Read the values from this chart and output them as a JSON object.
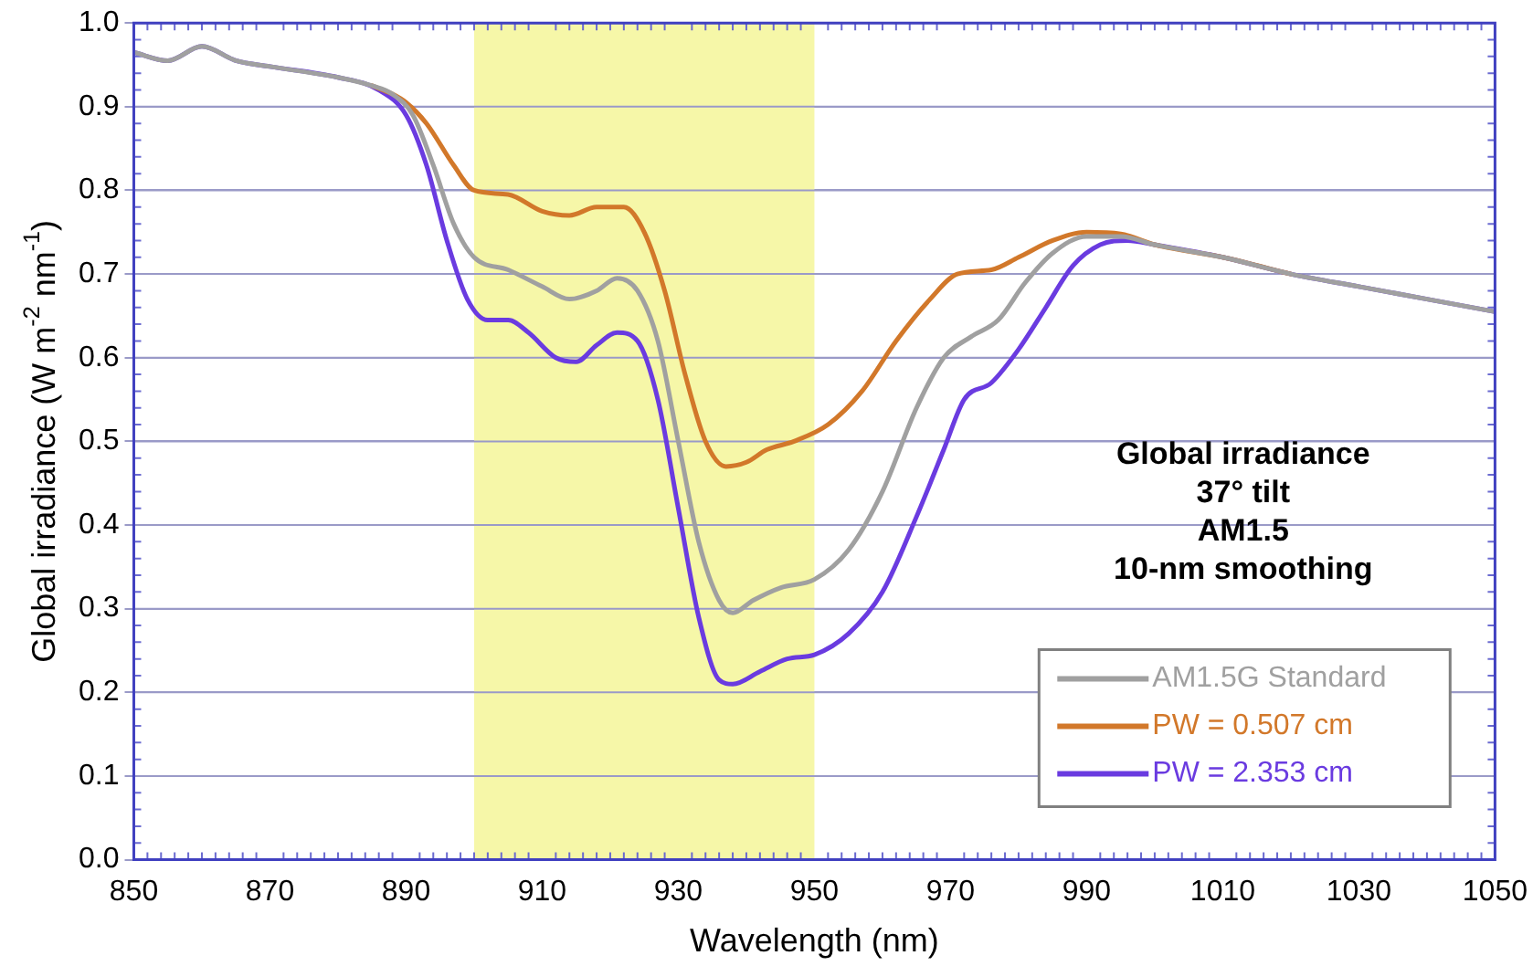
{
  "chart_data": {
    "type": "line",
    "xlabel": "Wavelength (nm)",
    "ylabel": "Global irradiance (W m$^{-2}$ nm$^{-1}$)",
    "xlim": [
      850,
      1050
    ],
    "xticks": [
      850,
      870,
      890,
      910,
      930,
      950,
      970,
      990,
      1010,
      1030,
      1050
    ],
    "ylim": [
      0,
      1
    ],
    "yticks": [
      {
        "value": 0,
        "label": "0.0"
      },
      {
        "value": 0.1,
        "label": "0.1"
      },
      {
        "value": 0.2,
        "label": "0.2"
      },
      {
        "value": 0.3,
        "label": "0.3"
      },
      {
        "value": 0.4,
        "label": "0.4"
      },
      {
        "value": 0.5,
        "label": "0.5"
      },
      {
        "value": 0.6,
        "label": "0.6"
      },
      {
        "value": 0.7,
        "label": "0.7"
      },
      {
        "value": 0.8,
        "label": "0.8"
      },
      {
        "value": 0.9,
        "label": "0.9"
      },
      {
        "value": 1,
        "label": "1.0"
      }
    ],
    "grid": "y",
    "legend": "bottom right",
    "marker": "none",
    "line_style": "solid",
    "bands": [
      {
        "axis": "x",
        "from": 900,
        "to": 950,
        "color": "#f6f7a8"
      }
    ],
    "annotations": [
      "Global irradiance",
      "37° tilt",
      "AM1.5",
      "10-nm smoothing"
    ],
    "series": [
      {
        "name": "AM1.5G Standard",
        "color": "#a0a0a0",
        "x": [
          850,
          855,
          860,
          865,
          870,
          880,
          885,
          888,
          891,
          894,
          897,
          900,
          905,
          910,
          914,
          918,
          921,
          924,
          927,
          930,
          933,
          936,
          938,
          941,
          945,
          950,
          955,
          960,
          965,
          969,
          973,
          977,
          981,
          985,
          990,
          995,
          1000,
          1010,
          1020,
          1030,
          1040,
          1050
        ],
        "values": [
          0.965,
          0.955,
          0.972,
          0.955,
          0.948,
          0.935,
          0.925,
          0.915,
          0.89,
          0.83,
          0.76,
          0.72,
          0.705,
          0.685,
          0.67,
          0.68,
          0.695,
          0.68,
          0.62,
          0.5,
          0.38,
          0.31,
          0.295,
          0.31,
          0.325,
          0.335,
          0.37,
          0.44,
          0.54,
          0.6,
          0.625,
          0.645,
          0.69,
          0.725,
          0.745,
          0.745,
          0.735,
          0.72,
          0.7,
          0.685,
          0.67,
          0.655
        ]
      },
      {
        "name": "PW = 0.507 cm",
        "color": "#d2782a",
        "x": [
          885,
          888,
          890,
          893,
          897,
          900,
          905,
          910,
          914,
          918,
          922,
          925,
          928,
          931,
          934,
          937,
          940,
          943,
          947,
          952,
          957,
          962,
          967,
          971,
          976,
          980,
          985,
          990,
          995,
          1000,
          1010,
          1020
        ],
        "values": [
          0.925,
          0.915,
          0.905,
          0.88,
          0.83,
          0.8,
          0.795,
          0.775,
          0.77,
          0.78,
          0.78,
          0.75,
          0.68,
          0.58,
          0.5,
          0.47,
          0.475,
          0.49,
          0.5,
          0.52,
          0.56,
          0.62,
          0.67,
          0.7,
          0.705,
          0.72,
          0.74,
          0.75,
          0.748,
          0.735,
          0.72,
          0.7
        ]
      },
      {
        "name": "PW = 2.353 cm",
        "color": "#6a3be0",
        "x": [
          850,
          855,
          860,
          865,
          870,
          880,
          886,
          890,
          893,
          896,
          899,
          902,
          905,
          908,
          912,
          915,
          918,
          921,
          924,
          927,
          930,
          933,
          936,
          938,
          942,
          946,
          950,
          955,
          960,
          965,
          969,
          972,
          976,
          980,
          984,
          988,
          992,
          996,
          1000,
          1010,
          1020,
          1030,
          1040,
          1050
        ],
        "values": [
          0.965,
          0.955,
          0.972,
          0.955,
          0.948,
          0.935,
          0.92,
          0.89,
          0.83,
          0.74,
          0.67,
          0.645,
          0.645,
          0.63,
          0.6,
          0.595,
          0.615,
          0.63,
          0.62,
          0.55,
          0.42,
          0.29,
          0.215,
          0.21,
          0.225,
          0.24,
          0.245,
          0.27,
          0.32,
          0.41,
          0.49,
          0.55,
          0.57,
          0.61,
          0.66,
          0.71,
          0.735,
          0.74,
          0.735,
          0.72,
          0.7,
          0.685,
          0.67,
          0.655
        ]
      }
    ]
  }
}
